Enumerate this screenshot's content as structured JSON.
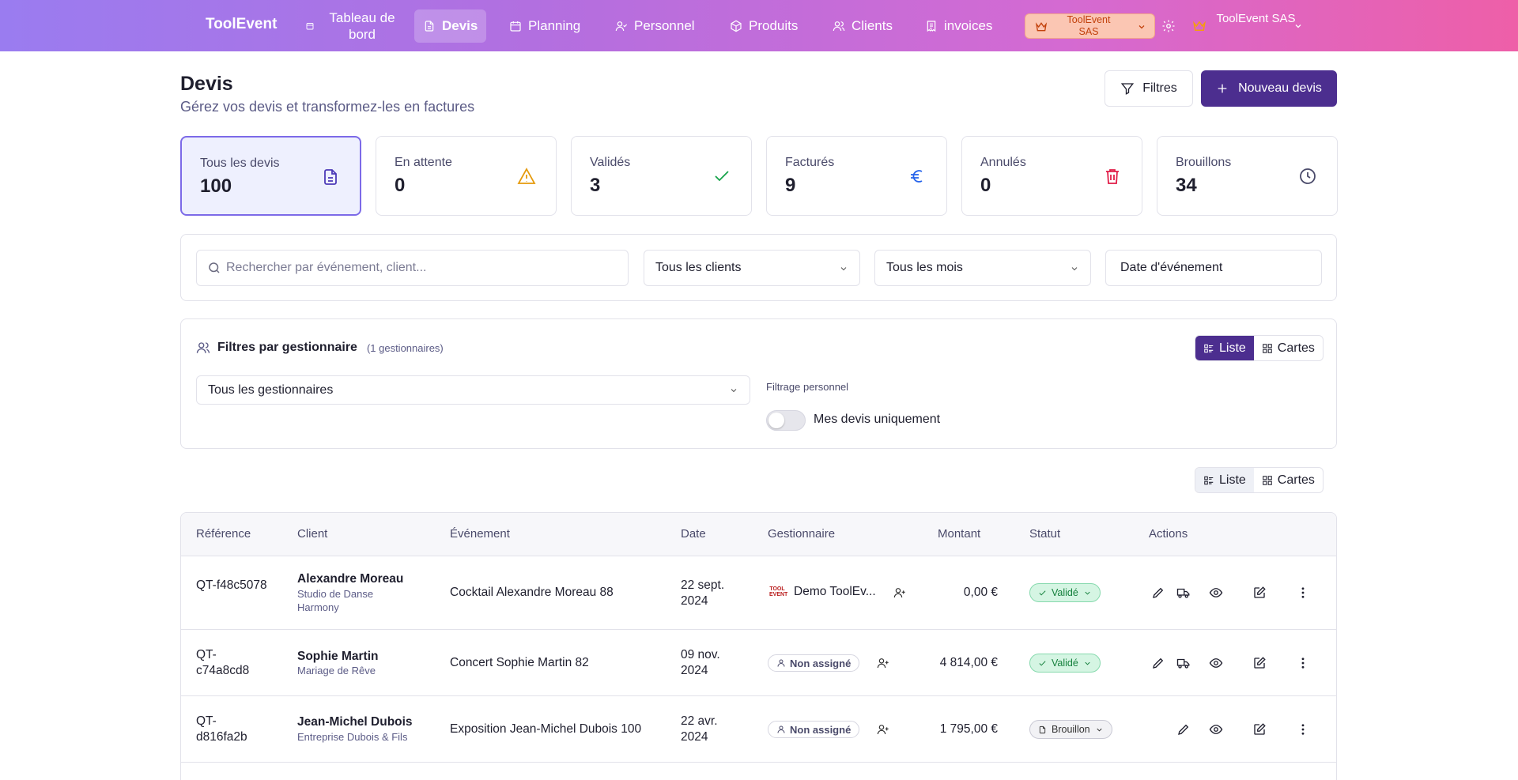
{
  "nav": {
    "brand": "ToolEvent",
    "items": [
      {
        "label": "Tableau de bord",
        "icon": "calendar-small-icon"
      },
      {
        "label": "Devis",
        "icon": "document-icon",
        "active": true
      },
      {
        "label": "Planning",
        "icon": "calendar-icon"
      },
      {
        "label": "Personnel",
        "icon": "user-check-icon"
      },
      {
        "label": "Produits",
        "icon": "box-icon"
      },
      {
        "label": "Clients",
        "icon": "users-icon"
      },
      {
        "label": "invoices",
        "icon": "receipt-icon"
      }
    ],
    "org_switcher": "ToolEvent SAS",
    "user_menu": "ToolEvent SAS"
  },
  "header": {
    "title": "Devis",
    "subtitle": "Gérez vos devis et transformez-les en factures",
    "filters_button": "Filtres",
    "new_button": "Nouveau devis"
  },
  "stats": [
    {
      "label": "Tous les devis",
      "value": "100",
      "icon": "document-icon",
      "color": "#4c3ab8",
      "active": true
    },
    {
      "label": "En attente",
      "value": "0",
      "icon": "warning-icon",
      "color": "#e59a0b"
    },
    {
      "label": "Validés",
      "value": "3",
      "icon": "check-icon",
      "color": "#16a34a"
    },
    {
      "label": "Facturés",
      "value": "9",
      "icon": "euro-icon",
      "color": "#2563eb"
    },
    {
      "label": "Annulés",
      "value": "0",
      "icon": "trash-icon",
      "color": "#e11d48"
    },
    {
      "label": "Brouillons",
      "value": "34",
      "icon": "clock-icon",
      "color": "#4a4a6a"
    }
  ],
  "search": {
    "placeholder": "Rechercher par événement, client...",
    "client_filter": "Tous les clients",
    "month_filter": "Tous les mois",
    "date_filter": "Date d'événement"
  },
  "managers": {
    "title": "Filtres par gestionnaire",
    "count": "(1 gestionnaires)",
    "select_value": "Tous les gestionnaires",
    "personal_label": "Filtrage personnel",
    "toggle_label": "Mes devis uniquement",
    "view_list": "Liste",
    "view_cards": "Cartes"
  },
  "view_toggle": {
    "list": "Liste",
    "cards": "Cartes"
  },
  "table": {
    "headers": {
      "reference": "Référence",
      "client": "Client",
      "event": "Événement",
      "date": "Date",
      "manager": "Gestionnaire",
      "amount": "Montant",
      "status": "Statut",
      "actions": "Actions"
    },
    "rows": [
      {
        "reference": "QT-f48c5078",
        "client_name": "Alexandre Moreau",
        "client_company": "Studio de Danse Harmony",
        "event": "Cocktail Alexandre Moreau 88",
        "date": "22 sept. 2024",
        "manager": "Demo ToolEv...",
        "manager_logo": "TOOL EVENT",
        "amount": "0,00 €",
        "status": "Validé"
      },
      {
        "reference": "QT-c74a8cd8",
        "client_name": "Sophie Martin",
        "client_company": "Mariage de Rêve",
        "event": "Concert Sophie Martin 82",
        "date": "09 nov. 2024",
        "manager": "Non assigné",
        "amount": "4 814,00 €",
        "status": "Validé"
      },
      {
        "reference": "QT-d816fa2b",
        "client_name": "Jean-Michel Dubois",
        "client_company": "Entreprise Dubois & Fils",
        "event": "Exposition Jean-Michel Dubois 100",
        "date": "22 avr. 2024",
        "manager": "Non assigné",
        "amount": "1 795,00 €",
        "status": "Brouillon"
      }
    ]
  }
}
